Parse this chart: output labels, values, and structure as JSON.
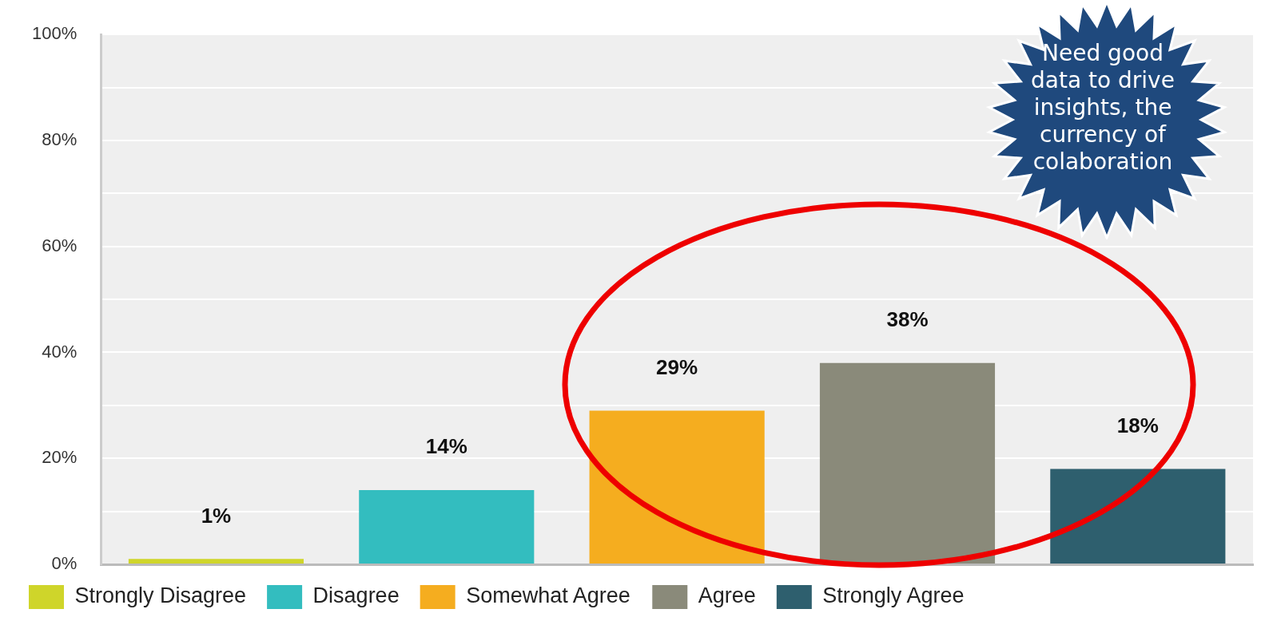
{
  "chart_data": {
    "type": "bar",
    "categories": [
      null,
      null,
      null,
      null,
      null
    ],
    "series": [
      {
        "name": "Strongly Disagree",
        "color": "#cfd52a",
        "values": [
          1,
          null,
          null,
          null,
          null
        ],
        "value_labels": [
          "1%",
          null,
          null,
          null,
          null
        ]
      },
      {
        "name": "Disagree",
        "color": "#33bdbf",
        "values": [
          null,
          14,
          null,
          null,
          null
        ],
        "value_labels": [
          null,
          "14%",
          null,
          null,
          null
        ]
      },
      {
        "name": "Somewhat Agree",
        "color": "#f5ad1f",
        "values": [
          null,
          null,
          29,
          null,
          null
        ],
        "value_labels": [
          null,
          null,
          "29%",
          null,
          null
        ]
      },
      {
        "name": "Agree",
        "color": "#8a8a7a",
        "values": [
          null,
          null,
          null,
          38,
          null
        ],
        "value_labels": [
          null,
          null,
          null,
          "38%",
          null
        ]
      },
      {
        "name": "Strongly Agree",
        "color": "#2e5f6e",
        "values": [
          null,
          null,
          null,
          null,
          18
        ],
        "value_labels": [
          null,
          null,
          null,
          null,
          "18%"
        ]
      }
    ],
    "ylim": [
      0,
      100
    ],
    "yticks": [
      {
        "value": 0,
        "label": "0%"
      },
      {
        "value": 10,
        "label": null
      },
      {
        "value": 20,
        "label": "20%"
      },
      {
        "value": 30,
        "label": null
      },
      {
        "value": 40,
        "label": "40%"
      },
      {
        "value": 50,
        "label": null
      },
      {
        "value": 60,
        "label": "60%"
      },
      {
        "value": 70,
        "label": null
      },
      {
        "value": 80,
        "label": "80%"
      },
      {
        "value": 90,
        "label": null
      },
      {
        "value": 100,
        "label": "100%"
      }
    ],
    "grid": "y",
    "legend": "bottom left",
    "tick_labels": "y",
    "annotations": [
      "Need good data to drive insights, the currency of colaboration"
    ]
  }
}
